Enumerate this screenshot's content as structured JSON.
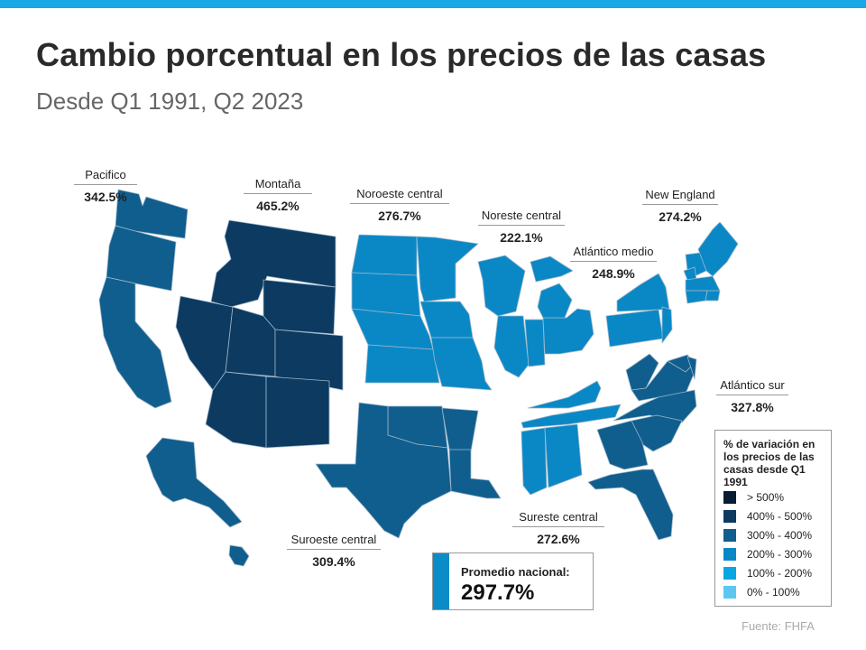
{
  "title": "Cambio porcentual en los precios de las casas",
  "subtitle": "Desde Q1 1991, Q2 2023",
  "regions": [
    {
      "id": "pacifico",
      "name": "Pacifico",
      "value": "342.5%",
      "bin": "300% - 400%",
      "color": "#105e8e"
    },
    {
      "id": "montana",
      "name": "Montaña",
      "value": "465.2%",
      "bin": "400% - 500%",
      "color": "#0c3a61"
    },
    {
      "id": "noroeste-central",
      "name": "Noroeste central",
      "value": "276.7%",
      "bin": "200% - 300%",
      "color": "#0a88c6"
    },
    {
      "id": "noreste-central",
      "name": "Noreste central",
      "value": "222.1%",
      "bin": "200% - 300%",
      "color": "#0a88c6"
    },
    {
      "id": "atlantico-medio",
      "name": "Atlántico medio",
      "value": "248.9%",
      "bin": "200% - 300%",
      "color": "#0a88c6"
    },
    {
      "id": "new-england",
      "name": "New England",
      "value": "274.2%",
      "bin": "200% - 300%",
      "color": "#0a88c6"
    },
    {
      "id": "atlantico-sur",
      "name": "Atlántico sur",
      "value": "327.8%",
      "bin": "300% - 400%",
      "color": "#105e8e"
    },
    {
      "id": "sureste-central",
      "name": "Sureste central",
      "value": "272.6%",
      "bin": "200% - 300%",
      "color": "#0a88c6"
    },
    {
      "id": "suroeste-central",
      "name": "Suroeste central",
      "value": "309.4%",
      "bin": "300% - 400%",
      "color": "#105e8e"
    }
  ],
  "legend": {
    "title": "% de variación en los precios de las casas desde Q1 1991",
    "items": [
      {
        "label": "> 500%",
        "color": "#071d33"
      },
      {
        "label": "400% - 500%",
        "color": "#0c3a61"
      },
      {
        "label": "300% - 400%",
        "color": "#105e8e"
      },
      {
        "label": "200% - 300%",
        "color": "#0a88c6"
      },
      {
        "label": "100% - 200%",
        "color": "#0aa6e3"
      },
      {
        "label": "0% - 100%",
        "color": "#5cc8f2"
      }
    ]
  },
  "national": {
    "label": "Promedio nacional:",
    "value": "297.7%"
  },
  "source": "Fuente:  FHFA"
}
